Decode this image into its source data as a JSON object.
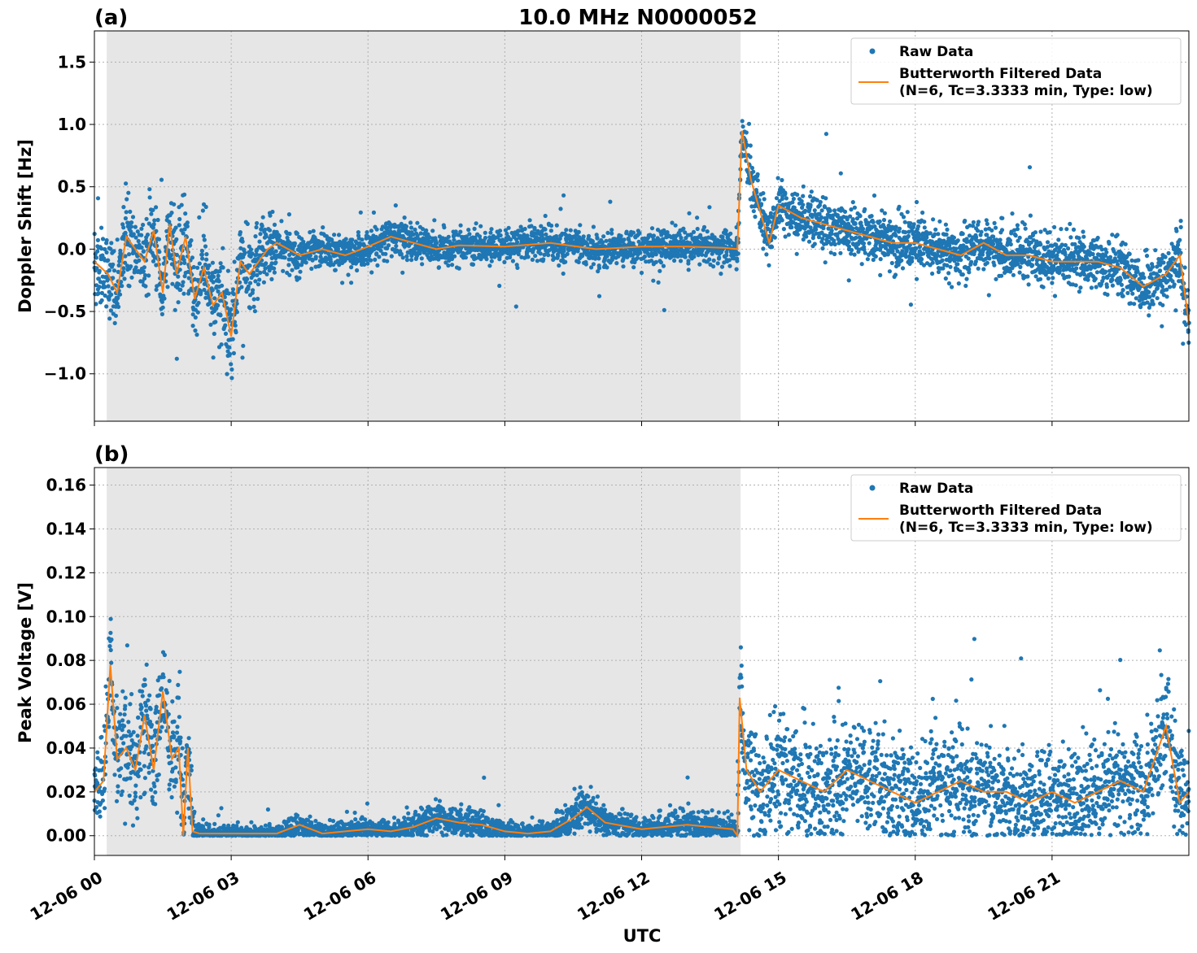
{
  "title": "10.0 MHz N0000052",
  "xlabel": "UTC",
  "colors": {
    "raw": "#1f77b4",
    "filtered": "#ff7f0e",
    "shade": "#e6e6e6",
    "grid": "#b0b0b0"
  },
  "chart_data": [
    {
      "type": "scatter",
      "panel_label": "(a)",
      "title": "10.0 MHz N0000052",
      "ylabel": "Doppler Shift [Hz]",
      "xlabel": "",
      "xlim_hours": [
        0,
        24
      ],
      "ylim": [
        -1.38,
        1.75
      ],
      "yticks": [
        -1.0,
        -0.5,
        0.0,
        0.5,
        1.0,
        1.5
      ],
      "ytick_labels": [
        "−1.0",
        "−0.5",
        "0.0",
        "0.5",
        "1.0",
        "1.5"
      ],
      "night_shade_hours": [
        0.27,
        14.17
      ],
      "grid": true,
      "legend": {
        "placement": "top-right",
        "raw_label": "Raw Data",
        "filtered_label_1": "Butterworth Filtered Data",
        "filtered_label_2": "(N=6, Tc=3.3333 min, Type: low)"
      },
      "series": [
        {
          "name": "Butterworth Filtered Data (N=6, Tc=3.3333 min, Type: low)",
          "kind": "line",
          "x": [
            0,
            0.3,
            0.5,
            0.7,
            0.9,
            1.1,
            1.3,
            1.5,
            1.65,
            1.8,
            2.0,
            2.2,
            2.4,
            2.6,
            2.8,
            3.0,
            3.2,
            3.4,
            3.6,
            3.8,
            4.0,
            4.5,
            5.0,
            5.5,
            6.0,
            6.5,
            7.0,
            7.5,
            8.0,
            9.0,
            10.0,
            11.0,
            12.0,
            13.0,
            13.8,
            14.1,
            14.2,
            14.4,
            14.6,
            14.8,
            15.0,
            15.5,
            16.0,
            16.5,
            17.0,
            17.5,
            18.0,
            18.5,
            19.0,
            19.5,
            20.0,
            20.5,
            21.0,
            21.5,
            22.0,
            22.5,
            23.0,
            23.5,
            23.8,
            24.0
          ],
          "y": [
            -0.1,
            -0.2,
            -0.35,
            0.1,
            0.0,
            -0.1,
            0.15,
            -0.35,
            0.2,
            -0.2,
            0.1,
            -0.4,
            -0.15,
            -0.45,
            -0.35,
            -0.7,
            -0.1,
            -0.2,
            -0.1,
            0.0,
            0.05,
            -0.05,
            0.0,
            -0.05,
            0.02,
            0.1,
            0.05,
            0.0,
            0.03,
            0.02,
            0.05,
            0.0,
            0.02,
            0.02,
            0.01,
            0.0,
            0.95,
            0.55,
            0.3,
            0.05,
            0.35,
            0.25,
            0.2,
            0.15,
            0.1,
            0.05,
            0.05,
            0.0,
            -0.05,
            0.05,
            -0.05,
            -0.05,
            -0.1,
            -0.1,
            -0.1,
            -0.15,
            -0.3,
            -0.2,
            -0.05,
            -0.6
          ]
        },
        {
          "name": "Raw Data",
          "kind": "scatter",
          "x": [],
          "y": []
        }
      ]
    },
    {
      "type": "scatter",
      "panel_label": "(b)",
      "title": "",
      "ylabel": "Peak Voltage [V]",
      "xlabel": "UTC",
      "xlim_hours": [
        0,
        24
      ],
      "ylim": [
        -0.009,
        0.168
      ],
      "yticks": [
        0.0,
        0.02,
        0.04,
        0.06,
        0.08,
        0.1,
        0.12,
        0.14,
        0.16
      ],
      "ytick_labels": [
        "0.00",
        "0.02",
        "0.04",
        "0.06",
        "0.08",
        "0.10",
        "0.12",
        "0.14",
        "0.16"
      ],
      "xticks_hours": [
        0,
        3,
        6,
        9,
        12,
        15,
        18,
        21
      ],
      "xtick_labels": [
        "12-06 00",
        "12-06 03",
        "12-06 06",
        "12-06 09",
        "12-06 12",
        "12-06 15",
        "12-06 18",
        "12-06 21"
      ],
      "night_shade_hours": [
        0.27,
        14.17
      ],
      "grid": true,
      "legend": {
        "placement": "top-right",
        "raw_label": "Raw Data",
        "filtered_label_1": "Butterworth Filtered Data",
        "filtered_label_2": "(N=6, Tc=3.3333 min, Type: low)"
      },
      "series": [
        {
          "name": "Butterworth Filtered Data (N=6, Tc=3.3333 min, Type: low)",
          "kind": "line",
          "x": [
            0,
            0.2,
            0.35,
            0.5,
            0.7,
            0.9,
            1.1,
            1.3,
            1.5,
            1.7,
            1.85,
            1.95,
            2.05,
            2.15,
            2.3,
            3.0,
            4.0,
            4.5,
            5.0,
            5.5,
            6.0,
            6.5,
            7.0,
            7.5,
            8.0,
            8.5,
            9.0,
            9.5,
            10.0,
            10.5,
            10.8,
            11.2,
            12.0,
            12.5,
            13.0,
            13.5,
            14.0,
            14.1,
            14.15,
            14.3,
            14.6,
            15.0,
            15.5,
            16.0,
            16.5,
            17.0,
            17.5,
            18.0,
            18.5,
            19.0,
            19.5,
            20.0,
            20.5,
            21.0,
            21.5,
            22.0,
            22.5,
            23.0,
            23.5,
            23.8,
            24.0
          ],
          "y": [
            0.02,
            0.025,
            0.078,
            0.035,
            0.04,
            0.03,
            0.055,
            0.03,
            0.066,
            0.035,
            0.04,
            0.0,
            0.04,
            0.002,
            0.001,
            0.001,
            0.001,
            0.005,
            0.001,
            0.002,
            0.003,
            0.002,
            0.004,
            0.008,
            0.006,
            0.005,
            0.002,
            0.001,
            0.002,
            0.008,
            0.013,
            0.006,
            0.003,
            0.004,
            0.005,
            0.004,
            0.003,
            0.0,
            0.063,
            0.03,
            0.02,
            0.03,
            0.025,
            0.02,
            0.03,
            0.025,
            0.02,
            0.015,
            0.02,
            0.025,
            0.02,
            0.02,
            0.015,
            0.02,
            0.015,
            0.02,
            0.025,
            0.02,
            0.05,
            0.015,
            0.02
          ]
        },
        {
          "name": "Raw Data",
          "kind": "scatter",
          "x": [],
          "y": []
        }
      ]
    }
  ]
}
